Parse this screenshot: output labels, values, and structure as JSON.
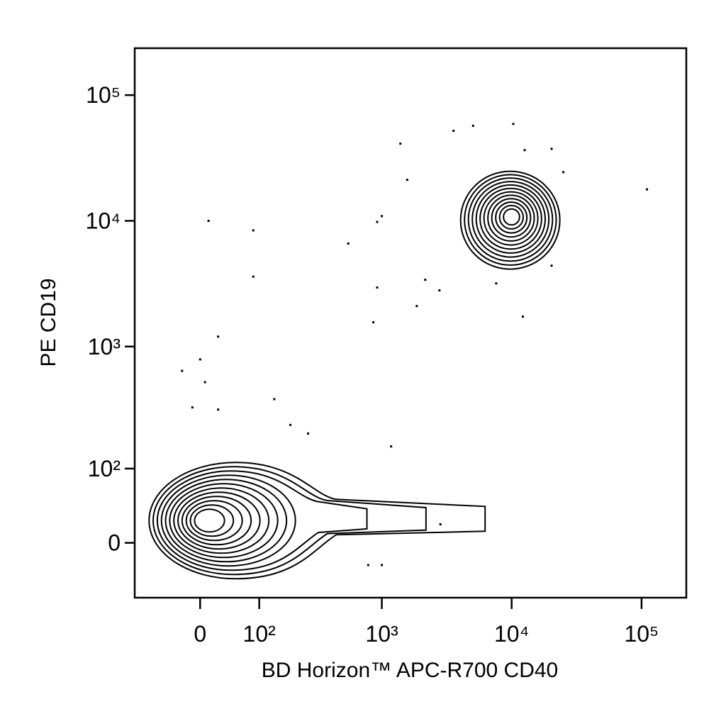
{
  "chart_data": {
    "type": "contour",
    "x_label": "BD Horizon™ APC-R700 CD40",
    "y_label": "PE CD19",
    "xscale": "biexponential",
    "yscale": "biexponential",
    "xlim": [
      -115,
      221000
    ],
    "ylim": [
      -65,
      236000
    ],
    "xticks": [
      0,
      {
        "value": 100,
        "label": "10²"
      },
      {
        "value": 1000,
        "label": "10³"
      },
      {
        "value": 10000,
        "label": "10⁴"
      },
      {
        "value": 100000,
        "label": "10⁵"
      }
    ],
    "yticks": [
      0,
      {
        "value": 100,
        "label": "10²"
      },
      {
        "value": 1000,
        "label": "10³"
      },
      {
        "value": 10000,
        "label": "10⁴"
      },
      {
        "value": 100000,
        "label": "10⁵"
      }
    ],
    "color": "#000000",
    "populations": [
      {
        "x": 10,
        "y": 23
      },
      {
        "x": 10000,
        "y": 10800
      }
    ],
    "points": {
      "x": [
        110000,
        12,
        87,
        87,
        26,
        0,
        -26,
        7,
        138,
        550,
        920,
        1000,
        1390,
        1570,
        920,
        860,
        1860,
        2160,
        3570,
        5050,
        10300,
        12600,
        20300,
        25000,
        12200,
        20300,
        2780,
        7600,
        785,
        1000,
        2830,
        1180,
        190,
        265,
        -11,
        26
      ],
      "y": [
        17800,
        10000,
        8400,
        3600,
        1200,
        790,
        640,
        520,
        380,
        6600,
        9800,
        10900,
        41100,
        21200,
        2950,
        1560,
        2100,
        3400,
        52000,
        57000,
        59000,
        36500,
        37400,
        24400,
        1730,
        4400,
        2800,
        3180,
        -23,
        -23,
        19,
        156,
        235,
        200,
        326,
        313
      ]
    }
  }
}
